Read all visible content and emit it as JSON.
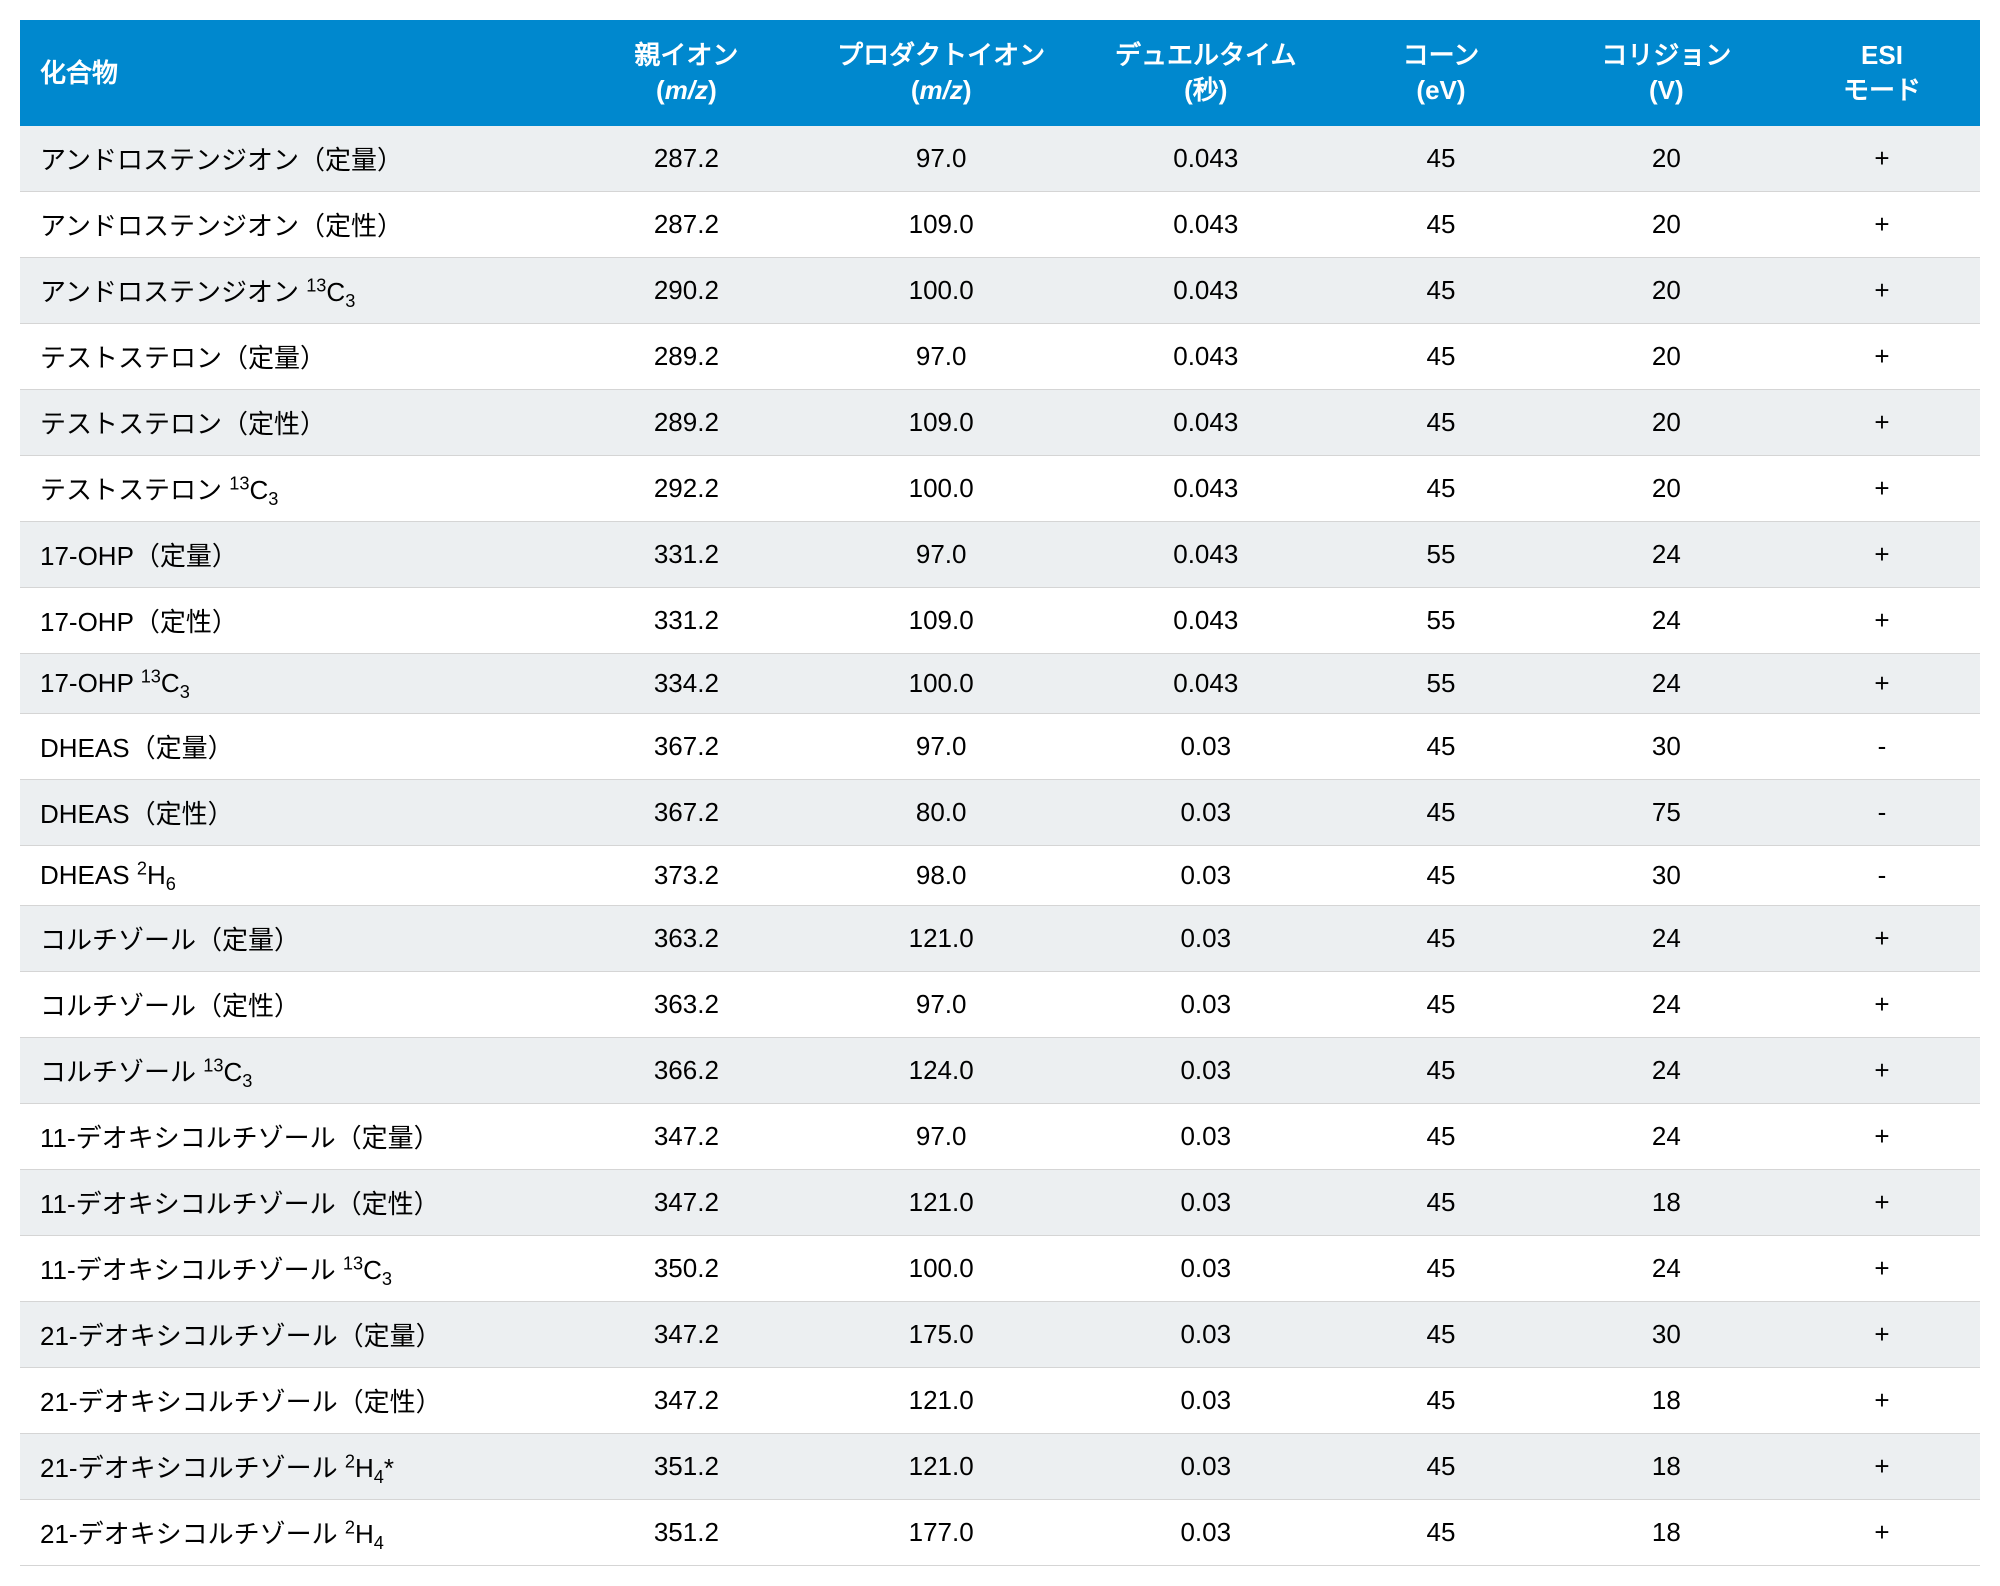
{
  "table": {
    "header_bg": "#0088ce",
    "header_text_color": "#ffffff",
    "row_odd_bg": "#eceff1",
    "row_even_bg": "#ffffff",
    "border_color": "#d5d5d5",
    "font_size_header": 26,
    "font_size_body": 26,
    "columns": [
      {
        "label_html": "化合物",
        "width_pct": 28,
        "align": "left"
      },
      {
        "label_html": "親イオン<br>(<span class='italic'>m/z</span>)",
        "width_pct": 12,
        "align": "center"
      },
      {
        "label_html": "プロダクトイオン<br>(<span class='italic'>m/z</span>)",
        "width_pct": 14,
        "align": "center"
      },
      {
        "label_html": "デュエルタイム<br>(秒)",
        "width_pct": 13,
        "align": "center"
      },
      {
        "label_html": "コーン<br>(eV)",
        "width_pct": 11,
        "align": "center"
      },
      {
        "label_html": "コリジョン<br>(V)",
        "width_pct": 12,
        "align": "center"
      },
      {
        "label_html": "ESI<br>モード",
        "width_pct": 10,
        "align": "center"
      }
    ],
    "rows": [
      {
        "compound_html": "アンドロステンジオン（定量）",
        "parent": "287.2",
        "product": "97.0",
        "dwell": "0.043",
        "cone": "45",
        "collision": "20",
        "esi": "+"
      },
      {
        "compound_html": "アンドロステンジオン（定性）",
        "parent": "287.2",
        "product": "109.0",
        "dwell": "0.043",
        "cone": "45",
        "collision": "20",
        "esi": "+"
      },
      {
        "compound_html": "アンドロステンジオン <sup>13</sup>C<sub>3</sub>",
        "parent": "290.2",
        "product": "100.0",
        "dwell": "0.043",
        "cone": "45",
        "collision": "20",
        "esi": "+"
      },
      {
        "compound_html": "テストステロン（定量）",
        "parent": "289.2",
        "product": "97.0",
        "dwell": "0.043",
        "cone": "45",
        "collision": "20",
        "esi": "+"
      },
      {
        "compound_html": "テストステロン（定性）",
        "parent": "289.2",
        "product": "109.0",
        "dwell": "0.043",
        "cone": "45",
        "collision": "20",
        "esi": "+"
      },
      {
        "compound_html": "テストステロン <sup>13</sup>C<sub>3</sub>",
        "parent": "292.2",
        "product": "100.0",
        "dwell": "0.043",
        "cone": "45",
        "collision": "20",
        "esi": "+"
      },
      {
        "compound_html": "17-OHP（定量）",
        "parent": "331.2",
        "product": "97.0",
        "dwell": "0.043",
        "cone": "55",
        "collision": "24",
        "esi": "+"
      },
      {
        "compound_html": "17-OHP（定性）",
        "parent": "331.2",
        "product": "109.0",
        "dwell": "0.043",
        "cone": "55",
        "collision": "24",
        "esi": "+"
      },
      {
        "compound_html": "17-OHP <sup>13</sup>C<sub>3</sub>",
        "parent": "334.2",
        "product": "100.0",
        "dwell": "0.043",
        "cone": "55",
        "collision": "24",
        "esi": "+"
      },
      {
        "compound_html": "DHEAS（定量）",
        "parent": "367.2",
        "product": "97.0",
        "dwell": "0.03",
        "cone": "45",
        "collision": "30",
        "esi": "-"
      },
      {
        "compound_html": "DHEAS（定性）",
        "parent": "367.2",
        "product": "80.0",
        "dwell": "0.03",
        "cone": "45",
        "collision": "75",
        "esi": "-"
      },
      {
        "compound_html": "DHEAS <sup>2</sup>H<sub>6</sub>",
        "parent": "373.2",
        "product": "98.0",
        "dwell": "0.03",
        "cone": "45",
        "collision": "30",
        "esi": "-"
      },
      {
        "compound_html": "コルチゾール（定量）",
        "parent": "363.2",
        "product": "121.0",
        "dwell": "0.03",
        "cone": "45",
        "collision": "24",
        "esi": "+"
      },
      {
        "compound_html": "コルチゾール（定性）",
        "parent": "363.2",
        "product": "97.0",
        "dwell": "0.03",
        "cone": "45",
        "collision": "24",
        "esi": "+"
      },
      {
        "compound_html": "コルチゾール <sup>13</sup>C<sub>3</sub>",
        "parent": "366.2",
        "product": "124.0",
        "dwell": "0.03",
        "cone": "45",
        "collision": "24",
        "esi": "+"
      },
      {
        "compound_html": "11-デオキシコルチゾール（定量）",
        "parent": "347.2",
        "product": "97.0",
        "dwell": "0.03",
        "cone": "45",
        "collision": "24",
        "esi": "+"
      },
      {
        "compound_html": "11-デオキシコルチゾール（定性）",
        "parent": "347.2",
        "product": "121.0",
        "dwell": "0.03",
        "cone": "45",
        "collision": "18",
        "esi": "+"
      },
      {
        "compound_html": "11-デオキシコルチゾール <sup>13</sup>C<sub>3</sub>",
        "parent": "350.2",
        "product": "100.0",
        "dwell": "0.03",
        "cone": "45",
        "collision": "24",
        "esi": "+"
      },
      {
        "compound_html": "21-デオキシコルチゾール（定量）",
        "parent": "347.2",
        "product": "175.0",
        "dwell": "0.03",
        "cone": "45",
        "collision": "30",
        "esi": "+"
      },
      {
        "compound_html": "21-デオキシコルチゾール（定性）",
        "parent": "347.2",
        "product": "121.0",
        "dwell": "0.03",
        "cone": "45",
        "collision": "18",
        "esi": "+"
      },
      {
        "compound_html": "21-デオキシコルチゾール <sup>2</sup>H<sub>4</sub>*",
        "parent": "351.2",
        "product": "121.0",
        "dwell": "0.03",
        "cone": "45",
        "collision": "18",
        "esi": "+"
      },
      {
        "compound_html": "21-デオキシコルチゾール <sup>2</sup>H<sub>4</sub>",
        "parent": "351.2",
        "product": "177.0",
        "dwell": "0.03",
        "cone": "45",
        "collision": "18",
        "esi": "+"
      }
    ]
  }
}
